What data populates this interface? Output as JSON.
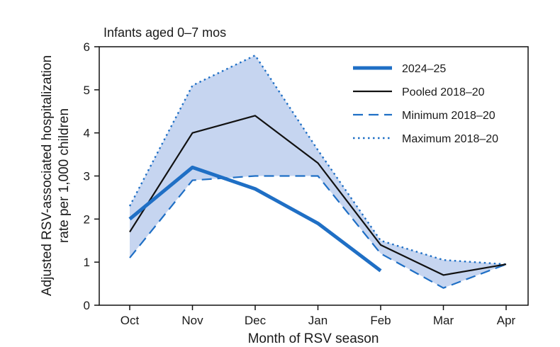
{
  "chart_data": {
    "type": "line",
    "panel_label": "Infants aged 0–7 mos",
    "xlabel": "Month of RSV season",
    "ylabel_lines": [
      "Adjusted RSV-associated hospitalization",
      "rate per 1,000 children"
    ],
    "categories": [
      "Oct",
      "Nov",
      "Dec",
      "Jan",
      "Feb",
      "Mar",
      "Apr"
    ],
    "ylim": [
      0,
      6
    ],
    "yticks": [
      "0",
      "1",
      "2",
      "3",
      "4",
      "5",
      "6"
    ],
    "grid": false,
    "legend_position": "top-right",
    "shaded_band": {
      "between": [
        "Minimum 2018–20",
        "Maximum 2018–20"
      ],
      "color": "#c6d5f0"
    },
    "series": [
      {
        "name": "2024–25",
        "style": "thick-solid",
        "color": "#1f6fc5",
        "values": [
          2.0,
          3.2,
          2.7,
          1.9,
          0.8,
          null,
          null
        ]
      },
      {
        "name": "Pooled 2018–20",
        "style": "solid",
        "color": "#111111",
        "values": [
          1.7,
          4.0,
          4.4,
          3.3,
          1.4,
          0.7,
          0.95
        ]
      },
      {
        "name": "Minimum 2018–20",
        "style": "dashed",
        "color": "#1f6fc5",
        "values": [
          1.1,
          2.9,
          3.0,
          3.0,
          1.2,
          0.4,
          0.95
        ]
      },
      {
        "name": "Maximum 2018–20",
        "style": "dotted",
        "color": "#1f6fc5",
        "values": [
          2.3,
          5.1,
          5.8,
          3.6,
          1.5,
          1.05,
          0.95
        ]
      }
    ]
  }
}
